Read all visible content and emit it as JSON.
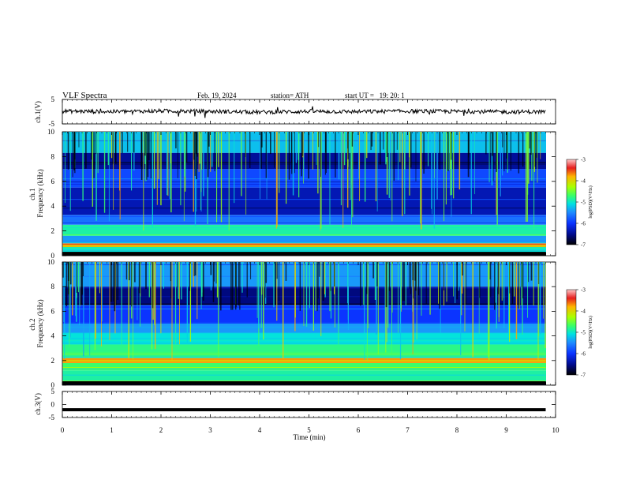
{
  "header": {
    "title": "VLF Spectra",
    "date": "Feb. 19, 2024",
    "station": "station= ATH",
    "start": "start UT =   19: 20: 1"
  },
  "colors": {
    "spectrogram_scale": [
      "#000000",
      "#000a8c",
      "#0a32ff",
      "#1e8cff",
      "#00e1e1",
      "#3cff64",
      "#aaff00",
      "#ffb400",
      "#e61e1e",
      "#ffc8c8"
    ]
  },
  "chart_data": [
    {
      "type": "line",
      "panel": "ch1-waveform",
      "ylabel": "ch.1(V)",
      "ylim": [
        -5,
        5
      ],
      "yticks": [
        "5",
        "-5"
      ],
      "x": [
        0,
        1,
        2,
        3,
        4,
        5,
        6,
        7,
        8,
        9,
        9.8
      ],
      "series": [
        {
          "values": [
            0.2,
            0.0,
            0.3,
            0.1,
            -0.2,
            0.1,
            0.0,
            0.2,
            0.1,
            -0.1,
            0.0
          ]
        }
      ]
    },
    {
      "type": "heatmap",
      "panel": "ch1-spectrogram",
      "ylabel": "ch.1\nFrequency (kHz)",
      "ylim": [
        0,
        10
      ],
      "yticks": [
        "0",
        "2",
        "4",
        "6",
        "8",
        "10"
      ],
      "xlim": [
        0,
        10
      ],
      "data_end_min": 9.8,
      "colorbar": {
        "label": "log(PSD)(V²/Hz)",
        "range": [
          -7,
          -3
        ],
        "ticks": [
          "-3",
          "-4",
          "-5",
          "-6",
          "-7"
        ]
      },
      "bands": [
        {
          "freq_khz": [
            0.0,
            0.3
          ],
          "log_psd": -7.0
        },
        {
          "freq_khz": [
            0.3,
            0.7
          ],
          "log_psd": -5.2
        },
        {
          "freq_khz": [
            0.7,
            1.0
          ],
          "log_psd": -3.8
        },
        {
          "freq_khz": [
            1.0,
            1.6
          ],
          "log_psd": -5.6
        },
        {
          "freq_khz": [
            1.6,
            2.5
          ],
          "log_psd": -5.0
        },
        {
          "freq_khz": [
            2.5,
            3.3
          ],
          "log_psd": -5.8
        },
        {
          "freq_khz": [
            3.3,
            5.5
          ],
          "log_psd": -6.4
        },
        {
          "freq_khz": [
            5.5,
            7.0
          ],
          "log_psd": -6.0
        },
        {
          "freq_khz": [
            7.0,
            8.3
          ],
          "log_psd": -6.5
        },
        {
          "freq_khz": [
            8.3,
            10.0
          ],
          "log_psd": -5.4
        }
      ]
    },
    {
      "type": "heatmap",
      "panel": "ch2-spectrogram",
      "ylabel": "ch.2\nFrequency (kHz)",
      "ylim": [
        0,
        10
      ],
      "yticks": [
        "0",
        "2",
        "4",
        "6",
        "8",
        "10"
      ],
      "xlim": [
        0,
        10
      ],
      "data_end_min": 9.8,
      "colorbar": {
        "label": "log(PSD)(V²/Hz)",
        "range": [
          -7,
          -3
        ],
        "ticks": [
          "-3",
          "-4",
          "-5",
          "-6",
          "-7"
        ]
      },
      "bands": [
        {
          "freq_khz": [
            0.0,
            0.3
          ],
          "log_psd": -7.0
        },
        {
          "freq_khz": [
            0.3,
            1.2
          ],
          "log_psd": -5.0
        },
        {
          "freq_khz": [
            1.2,
            1.8
          ],
          "log_psd": -4.8
        },
        {
          "freq_khz": [
            1.8,
            2.2
          ],
          "log_psd": -3.8
        },
        {
          "freq_khz": [
            2.2,
            3.3
          ],
          "log_psd": -4.9
        },
        {
          "freq_khz": [
            3.3,
            4.2
          ],
          "log_psd": -5.2
        },
        {
          "freq_khz": [
            4.2,
            5.0
          ],
          "log_psd": -5.6
        },
        {
          "freq_khz": [
            5.0,
            6.5
          ],
          "log_psd": -6.1
        },
        {
          "freq_khz": [
            6.5,
            8.0
          ],
          "log_psd": -6.6
        },
        {
          "freq_khz": [
            8.0,
            10.0
          ],
          "log_psd": -5.6
        }
      ]
    },
    {
      "type": "line",
      "panel": "ch3-waveform",
      "ylabel": "ch.3(V)",
      "ylim": [
        -5,
        5
      ],
      "yticks": [
        "5",
        "0",
        "-5"
      ],
      "x": [
        0,
        9.8
      ],
      "series": [
        {
          "values": [
            -2,
            -2
          ]
        }
      ]
    }
  ],
  "xaxis": {
    "label": "Time (min)",
    "range": [
      0,
      10
    ],
    "ticks": [
      "0",
      "1",
      "2",
      "3",
      "4",
      "5",
      "6",
      "7",
      "8",
      "9",
      "10"
    ]
  }
}
